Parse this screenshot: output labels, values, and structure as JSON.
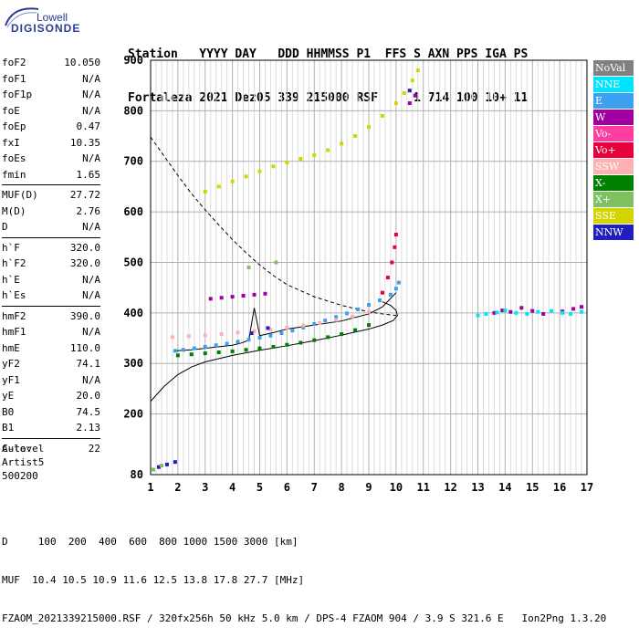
{
  "logo": {
    "line1": "Lowell",
    "line2": "DIGISONDE"
  },
  "header": {
    "row1": "Station   YYYY DAY   DDD HHMMSS P1  FFS S AXN PPS IGA PS",
    "row2": "Fortaleza 2021 Dez05 339 215000 RSF     1 714 100 10+ 11"
  },
  "params": [
    {
      "group": [
        {
          "name": "foF2",
          "value": "10.050"
        },
        {
          "name": "foF1",
          "value": "N/A"
        },
        {
          "name": "foF1p",
          "value": "N/A"
        },
        {
          "name": "foE",
          "value": "N/A"
        },
        {
          "name": "foEp",
          "value": "0.47"
        },
        {
          "name": "fxI",
          "value": "10.35"
        },
        {
          "name": "foEs",
          "value": "N/A"
        },
        {
          "name": "fmin",
          "value": "1.65"
        }
      ]
    },
    {
      "group": [
        {
          "name": "MUF(D)",
          "value": "27.72"
        },
        {
          "name": "M(D)",
          "value": "2.76"
        },
        {
          "name": "D",
          "value": "N/A"
        }
      ]
    },
    {
      "group": [
        {
          "name": "h`F",
          "value": "320.0"
        },
        {
          "name": "h`F2",
          "value": "320.0"
        },
        {
          "name": "h`E",
          "value": "N/A"
        },
        {
          "name": "h`Es",
          "value": "N/A"
        }
      ]
    },
    {
      "group": [
        {
          "name": "hmF2",
          "value": "390.0"
        },
        {
          "name": "hmF1",
          "value": "N/A"
        },
        {
          "name": "hmE",
          "value": "110.0"
        },
        {
          "name": "yF2",
          "value": "74.1"
        },
        {
          "name": "yF1",
          "value": "N/A"
        },
        {
          "name": "yE",
          "value": "20.0"
        },
        {
          "name": "B0",
          "value": "74.5"
        },
        {
          "name": "B1",
          "value": "2.13"
        }
      ]
    },
    {
      "group": [
        {
          "name": "C-level",
          "value": "22"
        }
      ]
    }
  ],
  "auto": {
    "line1": "Auto:",
    "line2": "Artist5",
    "line3": "500200"
  },
  "footer": {
    "row1": "D     100  200  400  600  800 1000 1500 3000 [km]",
    "row2": "MUF  10.4 10.5 10.9 11.6 12.5 13.8 17.8 27.7 [MHz]",
    "row3": "FZAOM_2021339215000.RSF / 320fx256h 50 kHz 5.0 km / DPS-4 FZAOM 904 / 3.9 S 321.6 E   Ion2Png 1.3.20"
  },
  "legend": [
    {
      "label": "NoVal",
      "color": "#808080"
    },
    {
      "label": "NNE",
      "color": "#00e5ff"
    },
    {
      "label": "E",
      "color": "#3ca0f0"
    },
    {
      "label": "W",
      "color": "#a000a0"
    },
    {
      "label": "Vo-",
      "color": "#ff3ca0"
    },
    {
      "label": "Vo+",
      "color": "#e6003c"
    },
    {
      "label": "SSW",
      "color": "#ffb0b0"
    },
    {
      "label": "X-",
      "color": "#008000"
    },
    {
      "label": "X+",
      "color": "#80c060"
    },
    {
      "label": "SSE",
      "color": "#d4d400"
    },
    {
      "label": "NNW",
      "color": "#2020c0"
    }
  ],
  "chart_data": {
    "type": "scatter",
    "xlim": [
      1,
      17
    ],
    "ylim": [
      80,
      900
    ],
    "x_ticks": [
      1,
      2,
      3,
      4,
      5,
      6,
      7,
      8,
      9,
      10,
      11,
      12,
      13,
      14,
      15,
      16,
      17
    ],
    "y_ticks": [
      80,
      200,
      300,
      400,
      500,
      600,
      700,
      800,
      900
    ],
    "grid": true,
    "series": [
      {
        "name": "E",
        "color": "#3ca0f0",
        "x": [
          1.9,
          2.2,
          2.6,
          3.0,
          3.4,
          3.8,
          4.2,
          4.6,
          5.0,
          5.4,
          5.8,
          6.2,
          6.6,
          7.0,
          7.4,
          7.8,
          8.2,
          8.6,
          9.0,
          9.4,
          9.8,
          10.0,
          10.1
        ],
        "y": [
          325,
          327,
          330,
          333,
          336,
          339,
          343,
          347,
          351,
          355,
          360,
          365,
          371,
          378,
          385,
          392,
          399,
          407,
          416,
          425,
          436,
          448,
          460
        ]
      },
      {
        "name": "X-",
        "color": "#008000",
        "x": [
          2.0,
          2.5,
          3.0,
          3.5,
          4.0,
          4.5,
          5.0,
          5.5,
          6.0,
          6.5,
          7.0,
          7.5,
          8.0,
          8.5,
          9.0
        ],
        "y": [
          316,
          318,
          320,
          322,
          324,
          327,
          330,
          333,
          337,
          341,
          346,
          352,
          358,
          366,
          376
        ]
      },
      {
        "name": "SSW",
        "color": "#ffb0b0",
        "x": [
          1.8,
          2.4,
          3.0,
          3.6,
          4.2,
          4.8,
          5.4,
          6.0,
          6.6,
          7.2,
          7.8,
          8.4,
          9.0
        ],
        "y": [
          352,
          354,
          356,
          358,
          361,
          364,
          367,
          371,
          375,
          380,
          386,
          393,
          402
        ]
      },
      {
        "name": "W",
        "color": "#a000a0",
        "x": [
          3.2,
          3.6,
          4.0,
          4.4,
          4.8,
          5.2,
          10.5,
          10.7,
          13.6,
          13.9,
          14.2,
          14.6,
          15.0,
          15.4,
          16.1,
          16.5,
          16.8
        ],
        "y": [
          428,
          430,
          432,
          434,
          436,
          438,
          815,
          830,
          400,
          405,
          402,
          410,
          404,
          398,
          403,
          408,
          412
        ]
      },
      {
        "name": "Vo+",
        "color": "#e6003c",
        "x": [
          9.5,
          9.7,
          9.85,
          9.95,
          10.0
        ],
        "y": [
          440,
          470,
          500,
          530,
          555
        ]
      },
      {
        "name": "SSE",
        "color": "#d4d400",
        "x": [
          3.0,
          3.5,
          4.0,
          4.5,
          5.0,
          5.5,
          6.0,
          6.5,
          7.0,
          7.5,
          8.0,
          8.5,
          9.0,
          9.5,
          10.0,
          10.3,
          10.6,
          10.8
        ],
        "y": [
          640,
          650,
          660,
          670,
          680,
          690,
          698,
          705,
          712,
          722,
          735,
          750,
          768,
          790,
          815,
          835,
          860,
          880
        ]
      },
      {
        "name": "NNE",
        "color": "#00e5ff",
        "x": [
          13.0,
          13.3,
          13.7,
          14.0,
          14.4,
          14.8,
          15.2,
          15.7,
          16.1,
          16.4,
          16.8
        ],
        "y": [
          395,
          398,
          401,
          405,
          400,
          398,
          402,
          404,
          400,
          398,
          402
        ]
      },
      {
        "name": "NNW",
        "color": "#2020c0",
        "x": [
          1.3,
          1.6,
          1.9,
          4.7,
          5.3,
          10.5
        ],
        "y": [
          95,
          100,
          105,
          360,
          370,
          840
        ]
      },
      {
        "name": "X+",
        "color": "#80c060",
        "x": [
          1.1,
          1.4,
          4.6,
          5.6
        ],
        "y": [
          90,
          98,
          490,
          500
        ]
      }
    ],
    "lines": [
      {
        "name": "profile-solid",
        "style": "solid",
        "x": [
          1.0,
          1.5,
          2.0,
          2.5,
          3.0,
          4.0,
          5.0,
          6.0,
          7.0,
          8.0,
          9.0,
          9.5,
          9.9,
          10.05,
          10.0,
          9.8,
          9.5
        ],
        "y": [
          225,
          255,
          278,
          293,
          303,
          316,
          326,
          335,
          345,
          356,
          368,
          376,
          385,
          395,
          405,
          415,
          422
        ]
      },
      {
        "name": "profile-dashed",
        "style": "dashed",
        "x": [
          1.0,
          1.5,
          2.0,
          2.5,
          3.0,
          3.5,
          4.0,
          4.5,
          5.0,
          5.5,
          6.0,
          7.0,
          8.0,
          9.0,
          9.5,
          10.0
        ],
        "y": [
          748,
          710,
          672,
          636,
          604,
          574,
          545,
          519,
          495,
          474,
          456,
          432,
          415,
          402,
          398,
          395
        ]
      },
      {
        "name": "trace-E",
        "style": "solid",
        "x": [
          1.9,
          2.5,
          3.0,
          3.5,
          4.0,
          4.3,
          4.6,
          4.8,
          5.0,
          5.5,
          6.0,
          7.0,
          8.0,
          9.0,
          9.5,
          10.0
        ],
        "y": [
          325,
          327,
          330,
          333,
          336,
          340,
          346,
          410,
          355,
          361,
          368,
          376,
          384,
          398,
          412,
          440
        ]
      }
    ]
  }
}
